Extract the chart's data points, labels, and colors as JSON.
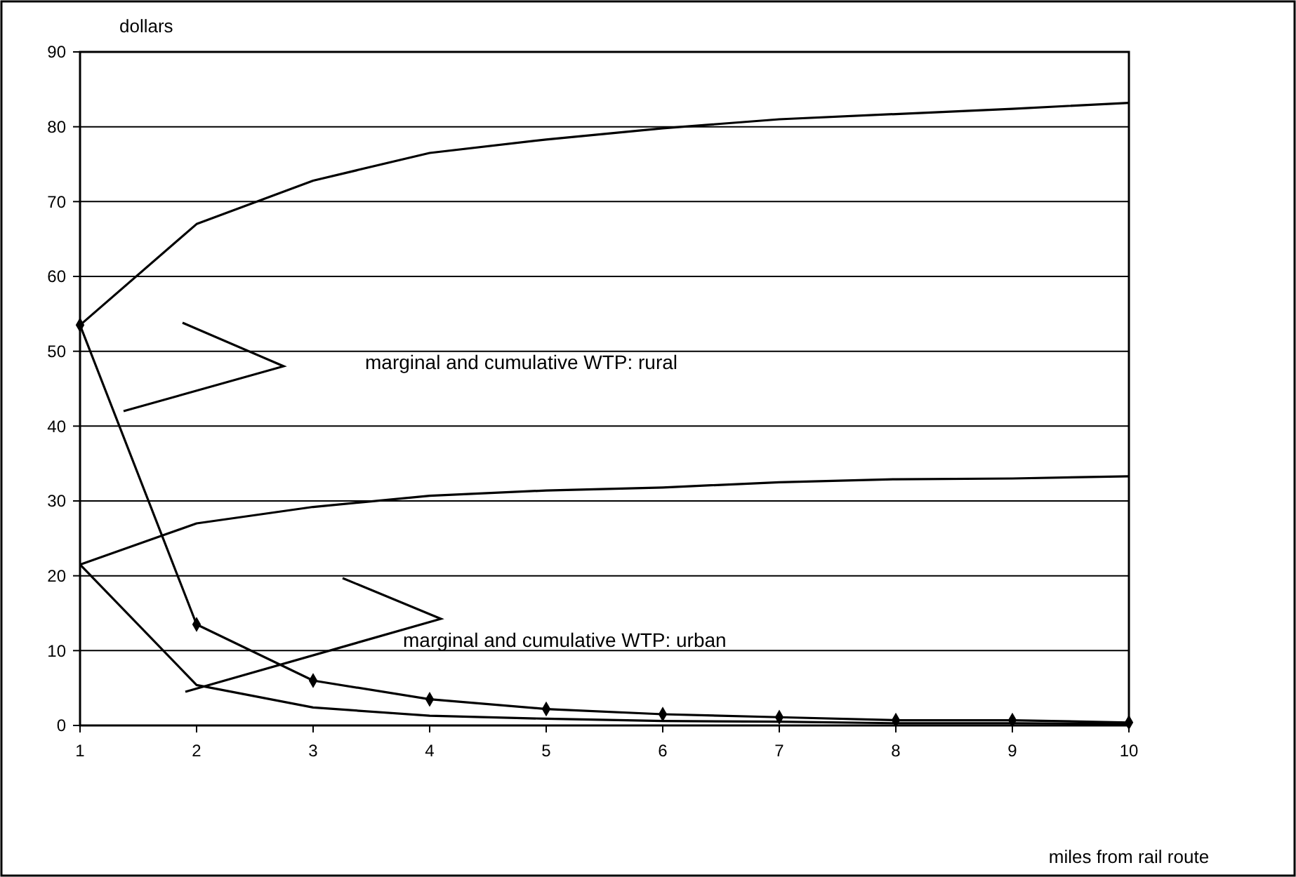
{
  "chart_data": {
    "type": "line",
    "ylabel": "dollars",
    "xlabel": "miles from rail route",
    "x": [
      1,
      2,
      3,
      4,
      5,
      6,
      7,
      8,
      9,
      10
    ],
    "xlim": [
      1,
      10
    ],
    "xticks": [
      1,
      2,
      3,
      4,
      5,
      6,
      7,
      8,
      9,
      10
    ],
    "ylim": [
      0,
      90
    ],
    "yticks": [
      0,
      10,
      20,
      30,
      40,
      50,
      60,
      70,
      80,
      90
    ],
    "grid": "y",
    "line_style": "solid",
    "series": [
      {
        "color": "#000000",
        "marker": "none",
        "values": [
          53.5,
          67,
          72.8,
          76.5,
          78.3,
          79.8,
          81,
          81.7,
          82.4,
          83.2
        ]
      },
      {
        "color": "#000000",
        "marker": "diamond",
        "values": [
          53.5,
          13.5,
          6,
          3.5,
          2.2,
          1.5,
          1.1,
          0.7,
          0.7,
          0.4
        ]
      },
      {
        "color": "#000000",
        "marker": "none",
        "values": [
          21.5,
          27,
          29.2,
          30.7,
          31.4,
          31.8,
          32.5,
          32.9,
          33,
          33.3
        ]
      },
      {
        "color": "#000000",
        "marker": "none",
        "values": [
          21.5,
          5.4,
          2.4,
          1.3,
          0.9,
          0.6,
          0.5,
          0.3,
          0.3,
          0.2
        ]
      }
    ],
    "annotations": [
      "marginal and cumulative WTP: rural",
      "marginal and cumulative WTP: urban"
    ]
  }
}
